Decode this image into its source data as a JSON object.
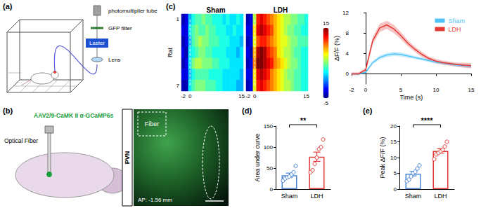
{
  "panels": {
    "a": {
      "label": "(a)",
      "texts": [
        "photomultiplier tube",
        "GFP filter",
        "Laster",
        "Lens"
      ]
    },
    "b": {
      "label": "(b)",
      "virus": "AAV2/9-CaMK II α-GCaMP6s",
      "fiber_label": "Optical Fiber",
      "region": "PVN",
      "inset_label": "Fiber",
      "coordinate": "AP: -1.56 mm"
    },
    "c": {
      "label": "(c)"
    },
    "d": {
      "label": "(d)"
    },
    "e": {
      "label": "(e)"
    }
  },
  "chart_data": [
    {
      "type": "heatmap",
      "title": "Sham",
      "x": [
        -2,
        -1,
        0,
        1,
        2,
        3,
        4,
        5,
        6,
        7,
        8,
        9,
        10,
        11,
        12,
        13,
        14,
        15
      ],
      "xticks": [
        -2,
        0,
        15
      ],
      "y": [
        1,
        2,
        3,
        4,
        5,
        6,
        7
      ],
      "yticks": [
        1,
        7
      ],
      "y_label": "Rat",
      "cells": [
        [
          -4,
          -3,
          1,
          3,
          4,
          4,
          5,
          4,
          4,
          3,
          3,
          3,
          2,
          3,
          2,
          2,
          3,
          2
        ],
        [
          -3,
          -3,
          2,
          4,
          5,
          4,
          4,
          5,
          4,
          4,
          3,
          3,
          3,
          2,
          2,
          3,
          2,
          2
        ],
        [
          -4,
          -3,
          1,
          4,
          5,
          6,
          5,
          5,
          4,
          4,
          4,
          3,
          3,
          3,
          2,
          2,
          2,
          1
        ],
        [
          -3,
          -4,
          2,
          3,
          4,
          5,
          5,
          4,
          4,
          3,
          3,
          3,
          3,
          2,
          2,
          2,
          1,
          2
        ],
        [
          -4,
          -3,
          2,
          5,
          6,
          6,
          5,
          5,
          5,
          4,
          4,
          3,
          3,
          3,
          2,
          2,
          2,
          2
        ],
        [
          -3,
          -3,
          1,
          3,
          4,
          4,
          4,
          4,
          3,
          3,
          3,
          3,
          2,
          2,
          2,
          2,
          2,
          1
        ],
        [
          -4,
          -4,
          2,
          4,
          5,
          5,
          5,
          4,
          4,
          4,
          3,
          3,
          2,
          2,
          2,
          2,
          1,
          1
        ]
      ]
    },
    {
      "type": "heatmap",
      "title": "LDH",
      "x": [
        -2,
        -1,
        0,
        1,
        2,
        3,
        4,
        5,
        6,
        7,
        8,
        9,
        10,
        11,
        12,
        13,
        14,
        15
      ],
      "xticks": [
        -2,
        0,
        15
      ],
      "y": [
        1,
        2,
        3,
        4,
        5,
        6,
        7
      ],
      "tick_labels": "x",
      "cells": [
        [
          -4,
          -3,
          6,
          12,
          13,
          12,
          11,
          10,
          9,
          8,
          7,
          6,
          6,
          5,
          5,
          4,
          4,
          3
        ],
        [
          -3,
          -3,
          8,
          13,
          14,
          13,
          12,
          11,
          9,
          8,
          7,
          6,
          5,
          5,
          4,
          4,
          3,
          3
        ],
        [
          -4,
          -3,
          7,
          11,
          12,
          12,
          11,
          10,
          9,
          8,
          7,
          7,
          6,
          5,
          5,
          4,
          4,
          4
        ],
        [
          -3,
          -4,
          9,
          14,
          15,
          14,
          12,
          11,
          10,
          8,
          7,
          6,
          6,
          5,
          4,
          4,
          3,
          3
        ],
        [
          -4,
          -3,
          10,
          15,
          15,
          14,
          13,
          12,
          10,
          9,
          8,
          7,
          6,
          5,
          5,
          4,
          3,
          3
        ],
        [
          -3,
          -3,
          8,
          13,
          14,
          13,
          12,
          10,
          9,
          8,
          7,
          6,
          5,
          5,
          4,
          4,
          3,
          3
        ],
        [
          -4,
          -3,
          7,
          12,
          13,
          12,
          11,
          10,
          9,
          8,
          7,
          6,
          6,
          5,
          4,
          4,
          3,
          3
        ]
      ],
      "colorbar_range": [
        -5,
        15
      ],
      "colorbar_ticks": [
        -5,
        15
      ]
    },
    {
      "type": "line",
      "x": [
        -2,
        -1,
        0,
        1,
        2,
        3,
        4,
        5,
        6,
        7,
        8,
        9,
        10,
        11,
        12,
        13,
        14,
        15
      ],
      "xlim": [
        -2,
        15
      ],
      "xticks": [
        -2,
        0,
        5,
        10,
        15
      ],
      "ylim": [
        -2,
        12
      ],
      "yticks": [
        0,
        4,
        8,
        12
      ],
      "x_label": "Time (s)",
      "y_label": "ΔF/F (%)",
      "legend": "upper right",
      "series": [
        {
          "name": "Sham",
          "color": "#4fc3f7",
          "values": [
            0,
            0,
            0.3,
            2.2,
            3.2,
            3.7,
            3.9,
            3.8,
            3.5,
            3.2,
            2.9,
            2.6,
            2.3,
            2.1,
            1.9,
            1.7,
            1.6,
            1.5
          ],
          "errors": [
            0.2,
            0.2,
            0.2,
            0.3,
            0.4,
            0.4,
            0.4,
            0.4,
            0.4,
            0.3,
            0.3,
            0.3,
            0.3,
            0.3,
            0.3,
            0.3,
            0.3,
            0.3
          ]
        },
        {
          "name": "LDH",
          "color": "#e53935",
          "values": [
            0,
            0,
            0.8,
            6.5,
            9.0,
            9.6,
            8.8,
            7.5,
            6.0,
            4.8,
            3.8,
            3.0,
            2.5,
            2.2,
            2.0,
            1.8,
            1.7,
            1.6
          ],
          "errors": [
            0.3,
            0.3,
            0.4,
            0.7,
            0.8,
            0.8,
            0.8,
            0.7,
            0.6,
            0.5,
            0.5,
            0.4,
            0.4,
            0.4,
            0.4,
            0.4,
            0.5,
            0.5
          ]
        }
      ]
    },
    {
      "type": "bar",
      "categories": [
        "Sham",
        "LDH"
      ],
      "values": [
        33,
        77
      ],
      "errors": [
        5,
        11
      ],
      "points": [
        [
          20,
          25,
          28,
          30,
          35,
          40,
          55
        ],
        [
          40,
          45,
          60,
          75,
          95,
          100,
          118
        ]
      ],
      "colors": [
        "#4a86d8",
        "#e53935"
      ],
      "ylim": [
        0,
        150
      ],
      "yticks": [
        0,
        50,
        100,
        150
      ],
      "y_label": "Area under curve",
      "annotation": "**"
    },
    {
      "type": "bar",
      "categories": [
        "Sham",
        "LDH"
      ],
      "values": [
        4.9,
        12.1
      ],
      "errors": [
        0.7,
        0.7
      ],
      "points": [
        [
          2.5,
          3,
          4,
          5,
          5.5,
          6.5,
          7.5
        ],
        [
          9.5,
          11,
          11.5,
          12,
          12.5,
          13.5,
          15
        ]
      ],
      "colors": [
        "#4a86d8",
        "#e53935"
      ],
      "ylim": [
        0,
        20
      ],
      "yticks": [
        0,
        5,
        10,
        15,
        20
      ],
      "y_label": "Peak ΔF/F (%)",
      "annotation": "****"
    }
  ]
}
